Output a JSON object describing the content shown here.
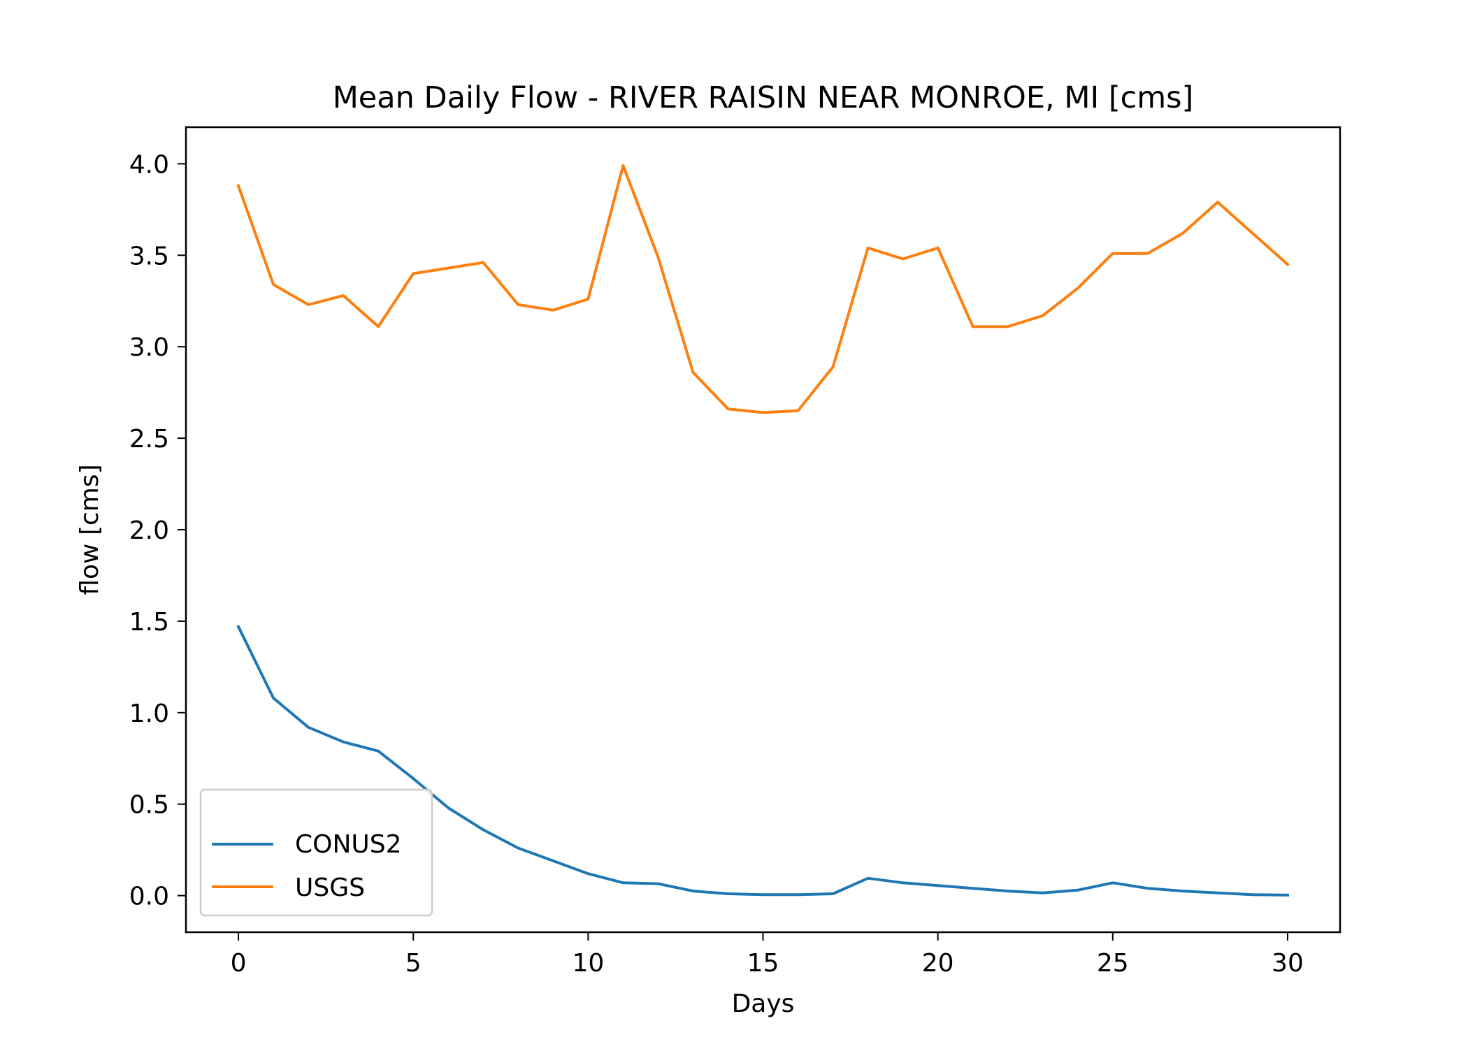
{
  "chart_data": {
    "type": "line",
    "title": "Mean Daily Flow - RIVER RAISIN NEAR MONROE, MI [cms]",
    "xlabel": "Days",
    "ylabel": "flow [cms]",
    "xlim": [
      -1.5,
      31.5
    ],
    "ylim": [
      -0.2,
      4.2
    ],
    "xticks": [
      0,
      5,
      10,
      15,
      20,
      25,
      30
    ],
    "xtick_labels": [
      "0",
      "5",
      "10",
      "15",
      "20",
      "25",
      "30"
    ],
    "yticks": [
      0.0,
      0.5,
      1.0,
      1.5,
      2.0,
      2.5,
      3.0,
      3.5,
      4.0
    ],
    "ytick_labels": [
      "0.0",
      "0.5",
      "1.0",
      "1.5",
      "2.0",
      "2.5",
      "3.0",
      "3.5",
      "4.0"
    ],
    "grid": false,
    "legend_position": "lower-left",
    "x": [
      0,
      1,
      2,
      3,
      4,
      5,
      6,
      7,
      8,
      9,
      10,
      11,
      12,
      13,
      14,
      15,
      16,
      17,
      18,
      19,
      20,
      21,
      22,
      23,
      24,
      25,
      26,
      27,
      28,
      29,
      30
    ],
    "series": [
      {
        "name": "CONUS2",
        "color": "#1f77b4",
        "values": [
          1.47,
          1.08,
          0.92,
          0.84,
          0.79,
          0.64,
          0.48,
          0.36,
          0.26,
          0.19,
          0.12,
          0.07,
          0.065,
          0.025,
          0.01,
          0.005,
          0.005,
          0.01,
          0.095,
          0.07,
          0.055,
          0.04,
          0.025,
          0.015,
          0.03,
          0.07,
          0.04,
          0.025,
          0.015,
          0.005,
          0.003
        ]
      },
      {
        "name": "USGS",
        "color": "#ff7f0e",
        "values": [
          3.88,
          3.34,
          3.23,
          3.28,
          3.11,
          3.4,
          3.43,
          3.46,
          3.23,
          3.2,
          3.26,
          3.99,
          3.49,
          2.86,
          2.66,
          2.64,
          2.65,
          2.89,
          3.54,
          3.48,
          3.54,
          3.11,
          3.11,
          3.17,
          3.32,
          3.51,
          3.51,
          3.62,
          3.79,
          3.62,
          3.45
        ]
      }
    ]
  }
}
